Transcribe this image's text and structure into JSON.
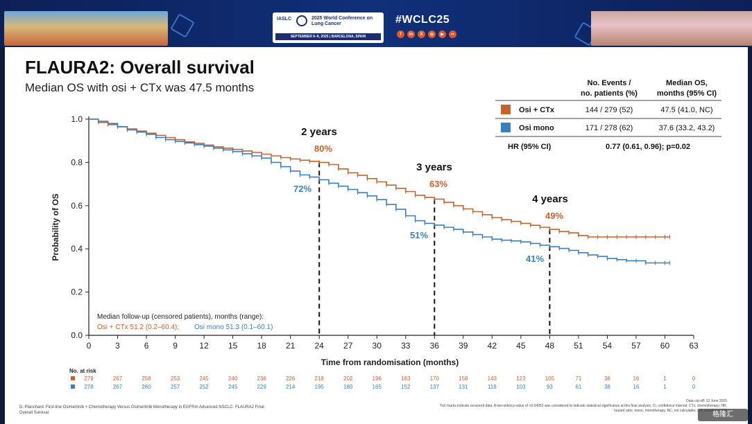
{
  "banner": {
    "org": "IASLC",
    "conference": "2025 World Conference on Lung Cancer",
    "dates": "SEPTEMBER 6–9, 2025  |  BARCELONA, SPAIN",
    "hashtag": "#WCLC25",
    "social_icons": [
      "facebook-icon",
      "linkedin-icon",
      "x-icon",
      "instagram-icon",
      "youtube-icon",
      "flickr-icon"
    ]
  },
  "slide": {
    "title": "FLAURA2: Overall survival",
    "subtitle": "Median OS with osi + CTx was 47.5 months"
  },
  "table": {
    "col1": "No. Events /\nno. patients (%)",
    "col2": "Median OS,\nmonths (95% CI)",
    "rows": [
      {
        "label": "Osi + CTx",
        "events": "144 / 279 (52)",
        "median": "47.5 (41.0, NC)",
        "color": "#c8612a"
      },
      {
        "label": "Osi mono",
        "events": "171 / 278 (62)",
        "median": "37.6 (33.2, 43.2)",
        "color": "#3a7fc2"
      }
    ],
    "hr_label": "HR (95% CI)",
    "hr_value": "0.77 (0.61, 0.96); p=0.02"
  },
  "chart_data": {
    "type": "line",
    "xlabel": "Time from randomisation (months)",
    "ylabel": "Probability of OS",
    "xlim": [
      0,
      63
    ],
    "ylim": [
      0,
      1
    ],
    "xticks": [
      0,
      3,
      6,
      9,
      12,
      15,
      18,
      21,
      24,
      27,
      30,
      33,
      36,
      39,
      42,
      45,
      48,
      51,
      54,
      57,
      60,
      63
    ],
    "yticks": [
      "0.0",
      "0.2",
      "0.4",
      "0.6",
      "0.8",
      "1.0"
    ],
    "series": [
      {
        "name": "Osi + CTx",
        "color": "#c8612a",
        "x": [
          0,
          1,
          2,
          3,
          4,
          5,
          6,
          7,
          8,
          9,
          10,
          11,
          12,
          13,
          14,
          15,
          16,
          17,
          18,
          19,
          20,
          21,
          22,
          23,
          24,
          25,
          26,
          27,
          28,
          29,
          30,
          31,
          32,
          33,
          34,
          35,
          36,
          37,
          38,
          39,
          40,
          41,
          42,
          43,
          44,
          45,
          46,
          47,
          48,
          49,
          50,
          51,
          52,
          53,
          54,
          55,
          56,
          57,
          58,
          59,
          60,
          60.5
        ],
        "y": [
          1.0,
          0.985,
          0.975,
          0.965,
          0.955,
          0.945,
          0.935,
          0.925,
          0.915,
          0.905,
          0.895,
          0.888,
          0.88,
          0.872,
          0.866,
          0.86,
          0.853,
          0.846,
          0.838,
          0.83,
          0.822,
          0.816,
          0.81,
          0.805,
          0.8,
          0.79,
          0.77,
          0.752,
          0.74,
          0.725,
          0.71,
          0.695,
          0.68,
          0.665,
          0.648,
          0.638,
          0.63,
          0.615,
          0.6,
          0.585,
          0.572,
          0.558,
          0.545,
          0.535,
          0.527,
          0.518,
          0.509,
          0.5,
          0.49,
          0.48,
          0.474,
          0.462,
          0.455,
          0.455,
          0.455,
          0.455,
          0.455,
          0.455,
          0.455,
          0.455,
          0.455,
          0.455
        ]
      },
      {
        "name": "Osi mono",
        "color": "#3a7fc2",
        "x": [
          0,
          1,
          2,
          3,
          4,
          5,
          6,
          7,
          8,
          9,
          10,
          11,
          12,
          13,
          14,
          15,
          16,
          17,
          18,
          19,
          20,
          21,
          22,
          23,
          24,
          25,
          26,
          27,
          28,
          29,
          30,
          31,
          32,
          33,
          34,
          35,
          36,
          37,
          38,
          39,
          40,
          41,
          42,
          43,
          44,
          45,
          46,
          47,
          48,
          49,
          50,
          51,
          52,
          53,
          54,
          55,
          56,
          57,
          58,
          59,
          60,
          60.5
        ],
        "y": [
          1.0,
          0.99,
          0.98,
          0.965,
          0.95,
          0.94,
          0.93,
          0.915,
          0.905,
          0.897,
          0.89,
          0.882,
          0.875,
          0.866,
          0.858,
          0.85,
          0.84,
          0.83,
          0.82,
          0.8,
          0.78,
          0.76,
          0.742,
          0.732,
          0.72,
          0.704,
          0.69,
          0.675,
          0.66,
          0.645,
          0.628,
          0.605,
          0.583,
          0.553,
          0.53,
          0.518,
          0.51,
          0.5,
          0.49,
          0.478,
          0.466,
          0.455,
          0.445,
          0.44,
          0.437,
          0.432,
          0.425,
          0.417,
          0.41,
          0.402,
          0.393,
          0.382,
          0.372,
          0.365,
          0.355,
          0.35,
          0.345,
          0.345,
          0.335,
          0.335,
          0.335,
          0.335
        ]
      }
    ],
    "milestones": [
      {
        "label": "2 years",
        "x": 24,
        "osi_ctx": "80%",
        "osi_mono": "72%",
        "y_ctx": 0.8,
        "y_mono": 0.72
      },
      {
        "label": "3 years",
        "x": 36,
        "osi_ctx": "63%",
        "osi_mono": "51%",
        "y_ctx": 0.63,
        "y_mono": 0.51
      },
      {
        "label": "4 years",
        "x": 48,
        "osi_ctx": "49%",
        "osi_mono": "41%",
        "y_ctx": 0.49,
        "y_mono": 0.41
      }
    ],
    "followup": {
      "heading": "Median follow-up (censored patients), months (range):",
      "ctx": "Osi + CTx 51.2 (0.2–60.4);",
      "mono": "Osi mono 51.3 (0.1–60.1)"
    },
    "at_risk": {
      "label": "No. at risk",
      "ctx": [
        279,
        267,
        258,
        253,
        245,
        240,
        236,
        226,
        218,
        202,
        196,
        183,
        170,
        158,
        143,
        123,
        105,
        71,
        36,
        16,
        1,
        0
      ],
      "mono": [
        278,
        267,
        260,
        257,
        252,
        245,
        229,
        214,
        195,
        180,
        165,
        152,
        137,
        131,
        118,
        103,
        93,
        61,
        38,
        16,
        1,
        0
      ]
    }
  },
  "footer": {
    "citation": "D. Planchard. First-line Osimertinib + Chemotherapy Versus Osimertinib Monotherapy in EGFRm Advanced NSCLC: FLAURA2 Final Overall Survival",
    "cutoff": "Data cut-off: 12 June 2025",
    "notes": "Tick marks indicate censored data. A two-sided p-value of <0.04953 was considered to indicate statistical significance at this final analysis. CI, confidence interval; CTx, chemotherapy; HR, hazard ratio; mono, monotherapy; NC, not calculable; OS, overall survival"
  },
  "watermark": "格隆汇"
}
